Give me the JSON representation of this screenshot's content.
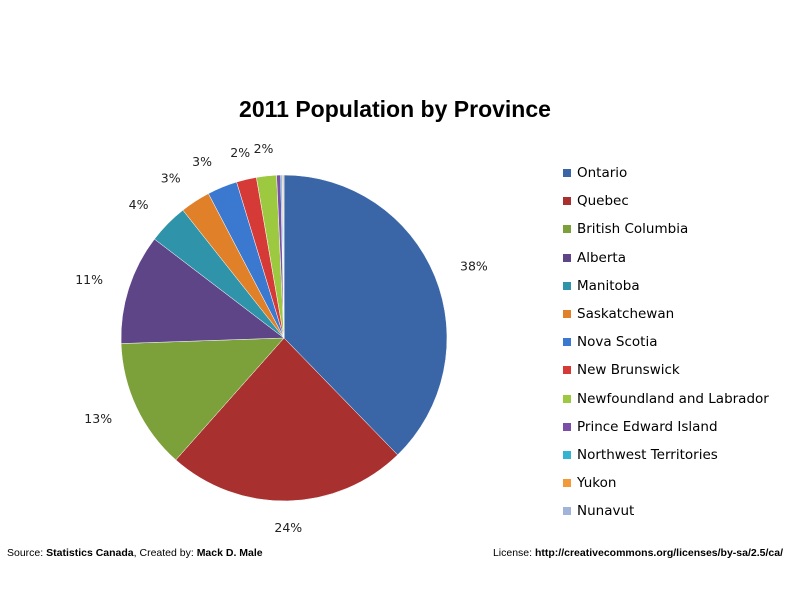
{
  "chart_data": {
    "type": "pie",
    "title": "2011 Population by Province",
    "legend_position": "right",
    "slices": [
      {
        "label": "Ontario",
        "value": 38,
        "display": "38%",
        "color": "#3a66a8"
      },
      {
        "label": "Quebec",
        "value": 24,
        "display": "24%",
        "color": "#a8302e"
      },
      {
        "label": "British Columbia",
        "value": 13,
        "display": "13%",
        "color": "#7da13a"
      },
      {
        "label": "Alberta",
        "value": 11,
        "display": "11%",
        "color": "#5e4587"
      },
      {
        "label": "Manitoba",
        "value": 4,
        "display": "4%",
        "color": "#2f93aa"
      },
      {
        "label": "Saskatchewan",
        "value": 3,
        "display": "3%",
        "color": "#e0812a"
      },
      {
        "label": "Nova Scotia",
        "value": 3,
        "display": "3%",
        "color": "#3b78d0"
      },
      {
        "label": "New Brunswick",
        "value": 2,
        "display": "2%",
        "color": "#d63a37"
      },
      {
        "label": "Newfoundland and Labrador",
        "value": 2,
        "display": "2%",
        "color": "#9cc93f"
      },
      {
        "label": "Prince Edward Island",
        "value": 0.4,
        "display": "",
        "color": "#7b4ea8"
      },
      {
        "label": "Northwest Territories",
        "value": 0.13,
        "display": "",
        "color": "#35b4d1"
      },
      {
        "label": "Yukon",
        "value": 0.1,
        "display": "",
        "color": "#f29a3a"
      },
      {
        "label": "Nunavut",
        "value": 0.1,
        "display": "",
        "color": "#9fb4d8"
      }
    ]
  },
  "footer": {
    "source_prefix": "Source: ",
    "source_name": "Statistics Canada",
    "created_prefix": ", Created by: ",
    "created_name": "Mack D. Male",
    "license_prefix": "License: ",
    "license_url": "http://creativecommons.org/licenses/by-sa/2.5/ca/"
  }
}
